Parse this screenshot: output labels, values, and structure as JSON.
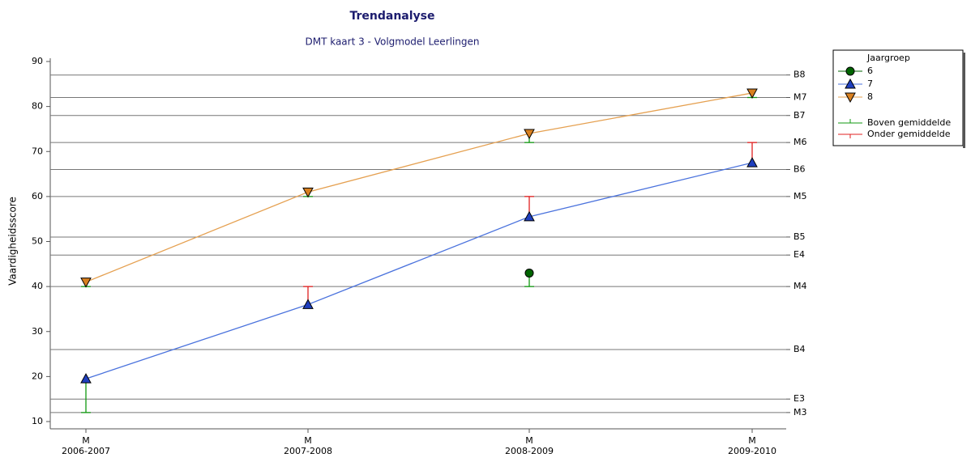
{
  "chart_data": {
    "type": "line",
    "title": "Trendanalyse",
    "subtitle": "DMT kaart 3 - Volgmodel Leerlingen",
    "y_label": "Vaardigheidsscore",
    "categories": [
      "2006-2007",
      "2007-2008",
      "2008-2009",
      "2009-2010"
    ],
    "category_sublabels": [
      "M",
      "M",
      "M",
      "M"
    ],
    "ylim": [
      10,
      90
    ],
    "yticks": [
      10,
      20,
      30,
      40,
      50,
      60,
      70,
      80,
      90
    ],
    "legend_title": "Jaargroep",
    "series": [
      {
        "name": "6",
        "color": "#006400",
        "line_color": "#006400",
        "marker": "circle",
        "values": [
          null,
          null,
          43,
          null
        ],
        "norms": [
          null,
          null,
          40,
          null
        ]
      },
      {
        "name": "7",
        "color": "#1f3fbf",
        "line_color": "#4a72dd",
        "marker": "triangle-up",
        "values": [
          19.5,
          36,
          55.5,
          67.5
        ],
        "norms": [
          12,
          40,
          60,
          72
        ]
      },
      {
        "name": "8",
        "color": "#d9801f",
        "line_color": "#e5a050",
        "marker": "triangle-down",
        "values": [
          41,
          61,
          74,
          83
        ],
        "norms": [
          40,
          60,
          72,
          82
        ]
      }
    ],
    "error_legend": [
      {
        "name": "Boven gemiddelde",
        "color": "#119911"
      },
      {
        "name": "Onder gemiddelde",
        "color": "#e02020"
      }
    ],
    "ref_lines": [
      {
        "label": "B8",
        "value": 87
      },
      {
        "label": "M7",
        "value": 82
      },
      {
        "label": "B7",
        "value": 78
      },
      {
        "label": "M6",
        "value": 72
      },
      {
        "label": "B6",
        "value": 66
      },
      {
        "label": "M5",
        "value": 60
      },
      {
        "label": "B5",
        "value": 51
      },
      {
        "label": "E4",
        "value": 47
      },
      {
        "label": "M4",
        "value": 40
      },
      {
        "label": "B4",
        "value": 26
      },
      {
        "label": "E3",
        "value": 15
      },
      {
        "label": "M3",
        "value": 12
      }
    ]
  }
}
